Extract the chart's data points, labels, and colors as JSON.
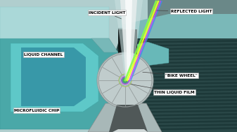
{
  "bg_color": "#c8d8d8",
  "labels": {
    "incident_light": "INCIDENT LIGHT",
    "reflected_light": "REFLECTED LIGHT",
    "liquid_channel": "LIQUID CHANNEL",
    "bike_wheel": "\"BIKE WHEEL\"",
    "thin_liquid_film": "THIN LIQUID FILM",
    "microfluidic_chip": "MICROFLUIDIC CHIP"
  },
  "colors": {
    "teal_light": "#7ecece",
    "teal_mid": "#4aa8a8",
    "teal_dark": "#2a7878",
    "dark_gray": "#2a3838",
    "dark_teal_bg": "#1a4848",
    "chip_body": "#8ab8b8",
    "wheel_body": "#c8d4d4",
    "dark_stripe": "#1a3030",
    "label_box": "#ffffff",
    "label_text": "#000000",
    "right_dark": "#1a3535",
    "mid_teal": "#5ab0b0"
  }
}
